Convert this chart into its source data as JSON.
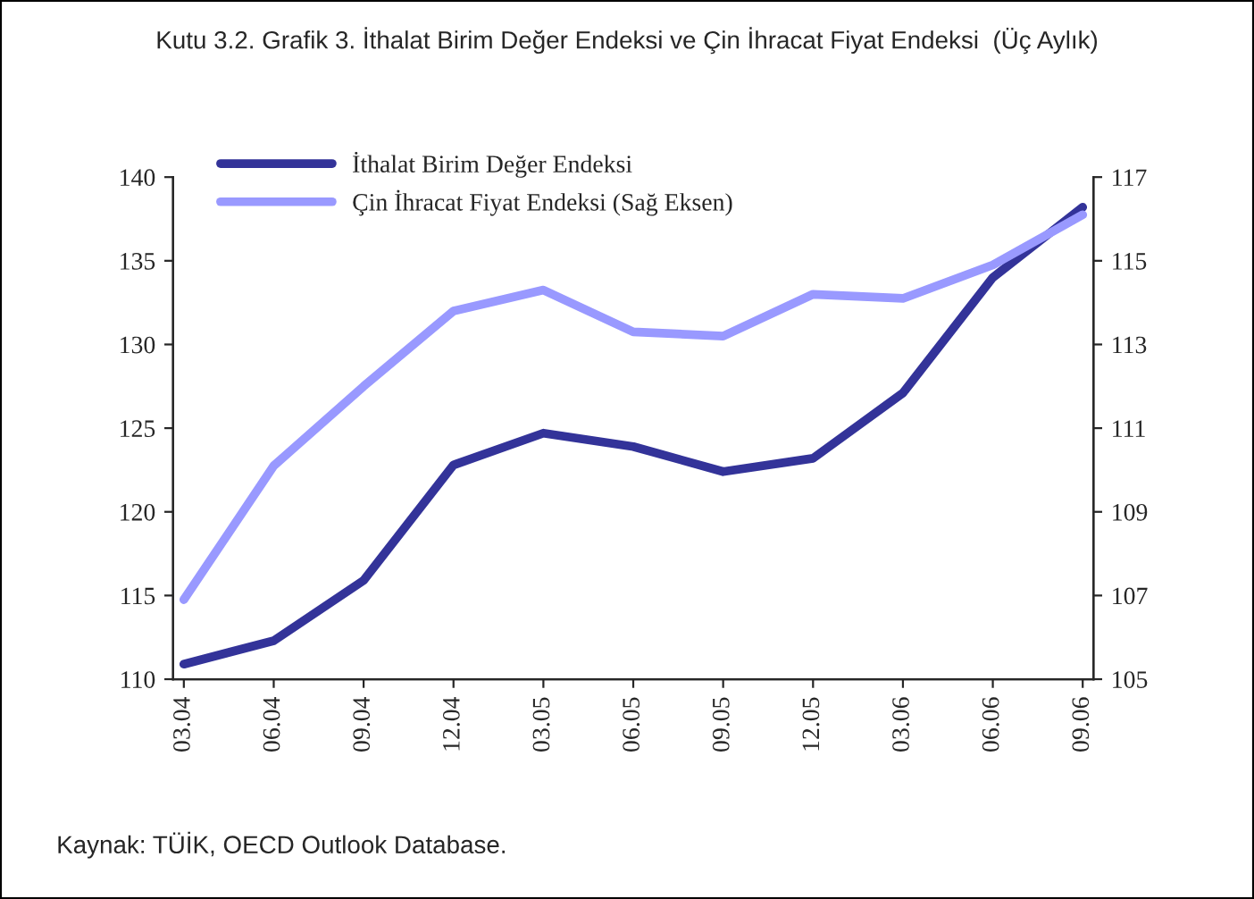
{
  "chart_data": {
    "type": "line",
    "title": "Kutu 3.2. Grafik 3. İthalat Birim Değer Endeksi ve Çin İhracat Fiyat Endeksi  (Üç Aylık)",
    "categories": [
      "03.04",
      "06.04",
      "09.04",
      "12.04",
      "03.05",
      "06.05",
      "09.05",
      "12.05",
      "03.06",
      "06.06",
      "09.06"
    ],
    "series": [
      {
        "name": "İthalat Birim Değer Endeksi",
        "color": "#333399",
        "values": [
          110.9,
          112.3,
          115.9,
          122.8,
          124.7,
          123.9,
          122.4,
          123.2,
          127.1,
          134.0,
          138.2
        ]
      },
      {
        "name": "Çin İhracat Fiyat Endeksi (Sağ Eksen)",
        "color": "#9999ff",
        "axis": "y2",
        "values": [
          106.9,
          110.1,
          112.0,
          113.8,
          114.3,
          113.3,
          113.2,
          114.2,
          114.1,
          114.9,
          116.1
        ]
      }
    ],
    "ylim": [
      110,
      140
    ],
    "yticks": [
      110,
      115,
      120,
      125,
      130,
      135,
      140
    ],
    "y2lim": [
      105,
      117
    ],
    "y2ticks": [
      105,
      107,
      109,
      111,
      113,
      115,
      117
    ],
    "legend": "top",
    "grid": false,
    "marker": "none",
    "line_style": "solid",
    "annotations": [
      "Kaynak: TÜİK, OECD Outlook Database."
    ]
  }
}
